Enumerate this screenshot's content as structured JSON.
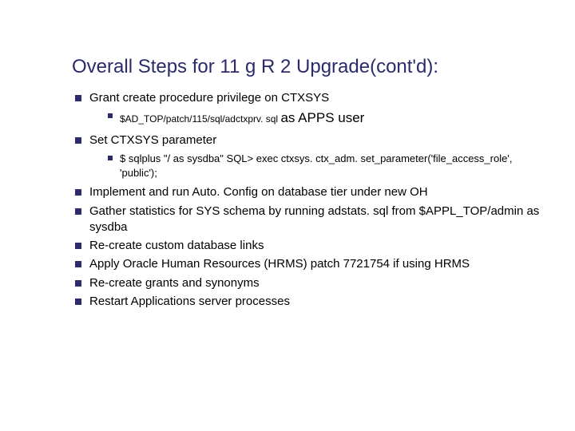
{
  "colors": {
    "title_color": "#2b2b6b",
    "bullet_color": "#2b2b6b",
    "text_color": "#000000",
    "background": "#ffffff"
  },
  "typography": {
    "title_fontsize": 24,
    "level1_fontsize": 15,
    "level2_fontsize": 13,
    "font_family": "Verdana"
  },
  "title": "Overall Steps for 11 g R 2 Upgrade(cont'd):",
  "b1": "Grant create procedure privilege on CTXSYS",
  "b1_1_small": "$AD_TOP/patch/115/sql/adctxprv. sql ",
  "b1_1_big": " as APPS user",
  "b2": "Set CTXSYS parameter",
  "b2_1": "$ sqlplus \"/ as sysdba\" SQL> exec ctxsys. ctx_adm. set_parameter('file_access_role', 'public');",
  "b3": "Implement and run Auto. Config on database tier under new OH",
  "b4": "Gather statistics for SYS schema by running adstats. sql from $APPL_TOP/admin as sysdba",
  "b5": "Re-create custom database links",
  "b6": "Apply Oracle Human Resources (HRMS) patch 7721754  if using HRMS",
  "b7": "Re-create grants and synonyms",
  "b8": "Restart Applications server processes"
}
